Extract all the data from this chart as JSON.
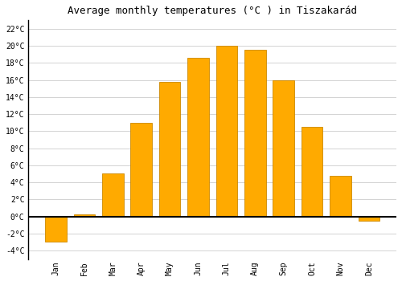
{
  "months": [
    "Jan",
    "Feb",
    "Mar",
    "Apr",
    "May",
    "Jun",
    "Jul",
    "Aug",
    "Sep",
    "Oct",
    "Nov",
    "Dec"
  ],
  "values": [
    -3.0,
    0.2,
    5.0,
    11.0,
    15.8,
    18.6,
    20.0,
    19.5,
    16.0,
    10.5,
    4.8,
    -0.5
  ],
  "bar_color": "#FFAA00",
  "bar_edge_color": "#CC8800",
  "title": "Average monthly temperatures (°C ) in Tiszakarád",
  "ylim": [
    -5,
    23
  ],
  "yticks": [
    -4,
    -2,
    0,
    2,
    4,
    6,
    8,
    10,
    12,
    14,
    16,
    18,
    20,
    22
  ],
  "background_color": "#ffffff",
  "grid_color": "#cccccc",
  "title_fontsize": 9,
  "tick_fontsize": 7,
  "font_family": "monospace",
  "bar_width": 0.75
}
